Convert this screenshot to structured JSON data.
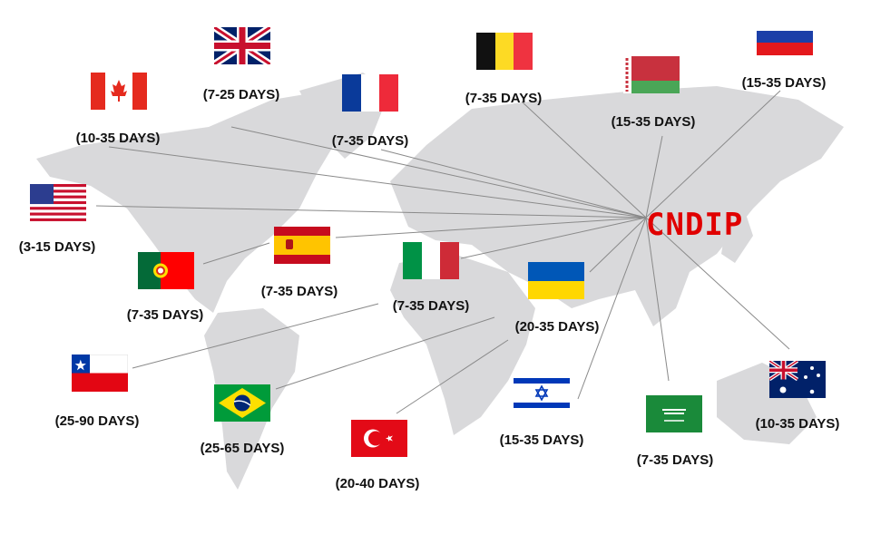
{
  "hub": {
    "label": "CNDIP",
    "color": "#e00000"
  },
  "map_color": "#d9d9db",
  "destinations": [
    {
      "flag": "uk-flag-icon",
      "label": "(7-25 DAYS)"
    },
    {
      "flag": "canada-flag-icon",
      "label": "(10-35 DAYS)"
    },
    {
      "flag": "france-flag-icon",
      "label": "(7-35 DAYS)"
    },
    {
      "flag": "belgium-flag-icon",
      "label": "(7-35 DAYS)"
    },
    {
      "flag": "belarus-flag-icon",
      "label": "(15-35 DAYS)"
    },
    {
      "flag": "russia-flag-icon",
      "label": "(15-35 DAYS)"
    },
    {
      "flag": "usa-flag-icon",
      "label": "(3-15 DAYS)"
    },
    {
      "flag": "spain-flag-icon",
      "label": "(7-35 DAYS)"
    },
    {
      "flag": "portugal-flag-icon",
      "label": "(7-35 DAYS)"
    },
    {
      "flag": "italy-flag-icon",
      "label": "(7-35 DAYS)"
    },
    {
      "flag": "ukraine-flag-icon",
      "label": "(20-35 DAYS)"
    },
    {
      "flag": "chile-flag-icon",
      "label": "(25-90 DAYS)"
    },
    {
      "flag": "brazil-flag-icon",
      "label": "(25-65 DAYS)"
    },
    {
      "flag": "turkey-flag-icon",
      "label": "(20-40 DAYS)"
    },
    {
      "flag": "israel-flag-icon",
      "label": "(15-35 DAYS)"
    },
    {
      "flag": "saudi-arabia-flag-icon",
      "label": "(7-35 DAYS)"
    },
    {
      "flag": "australia-flag-icon",
      "label": "(10-35 DAYS)"
    }
  ]
}
